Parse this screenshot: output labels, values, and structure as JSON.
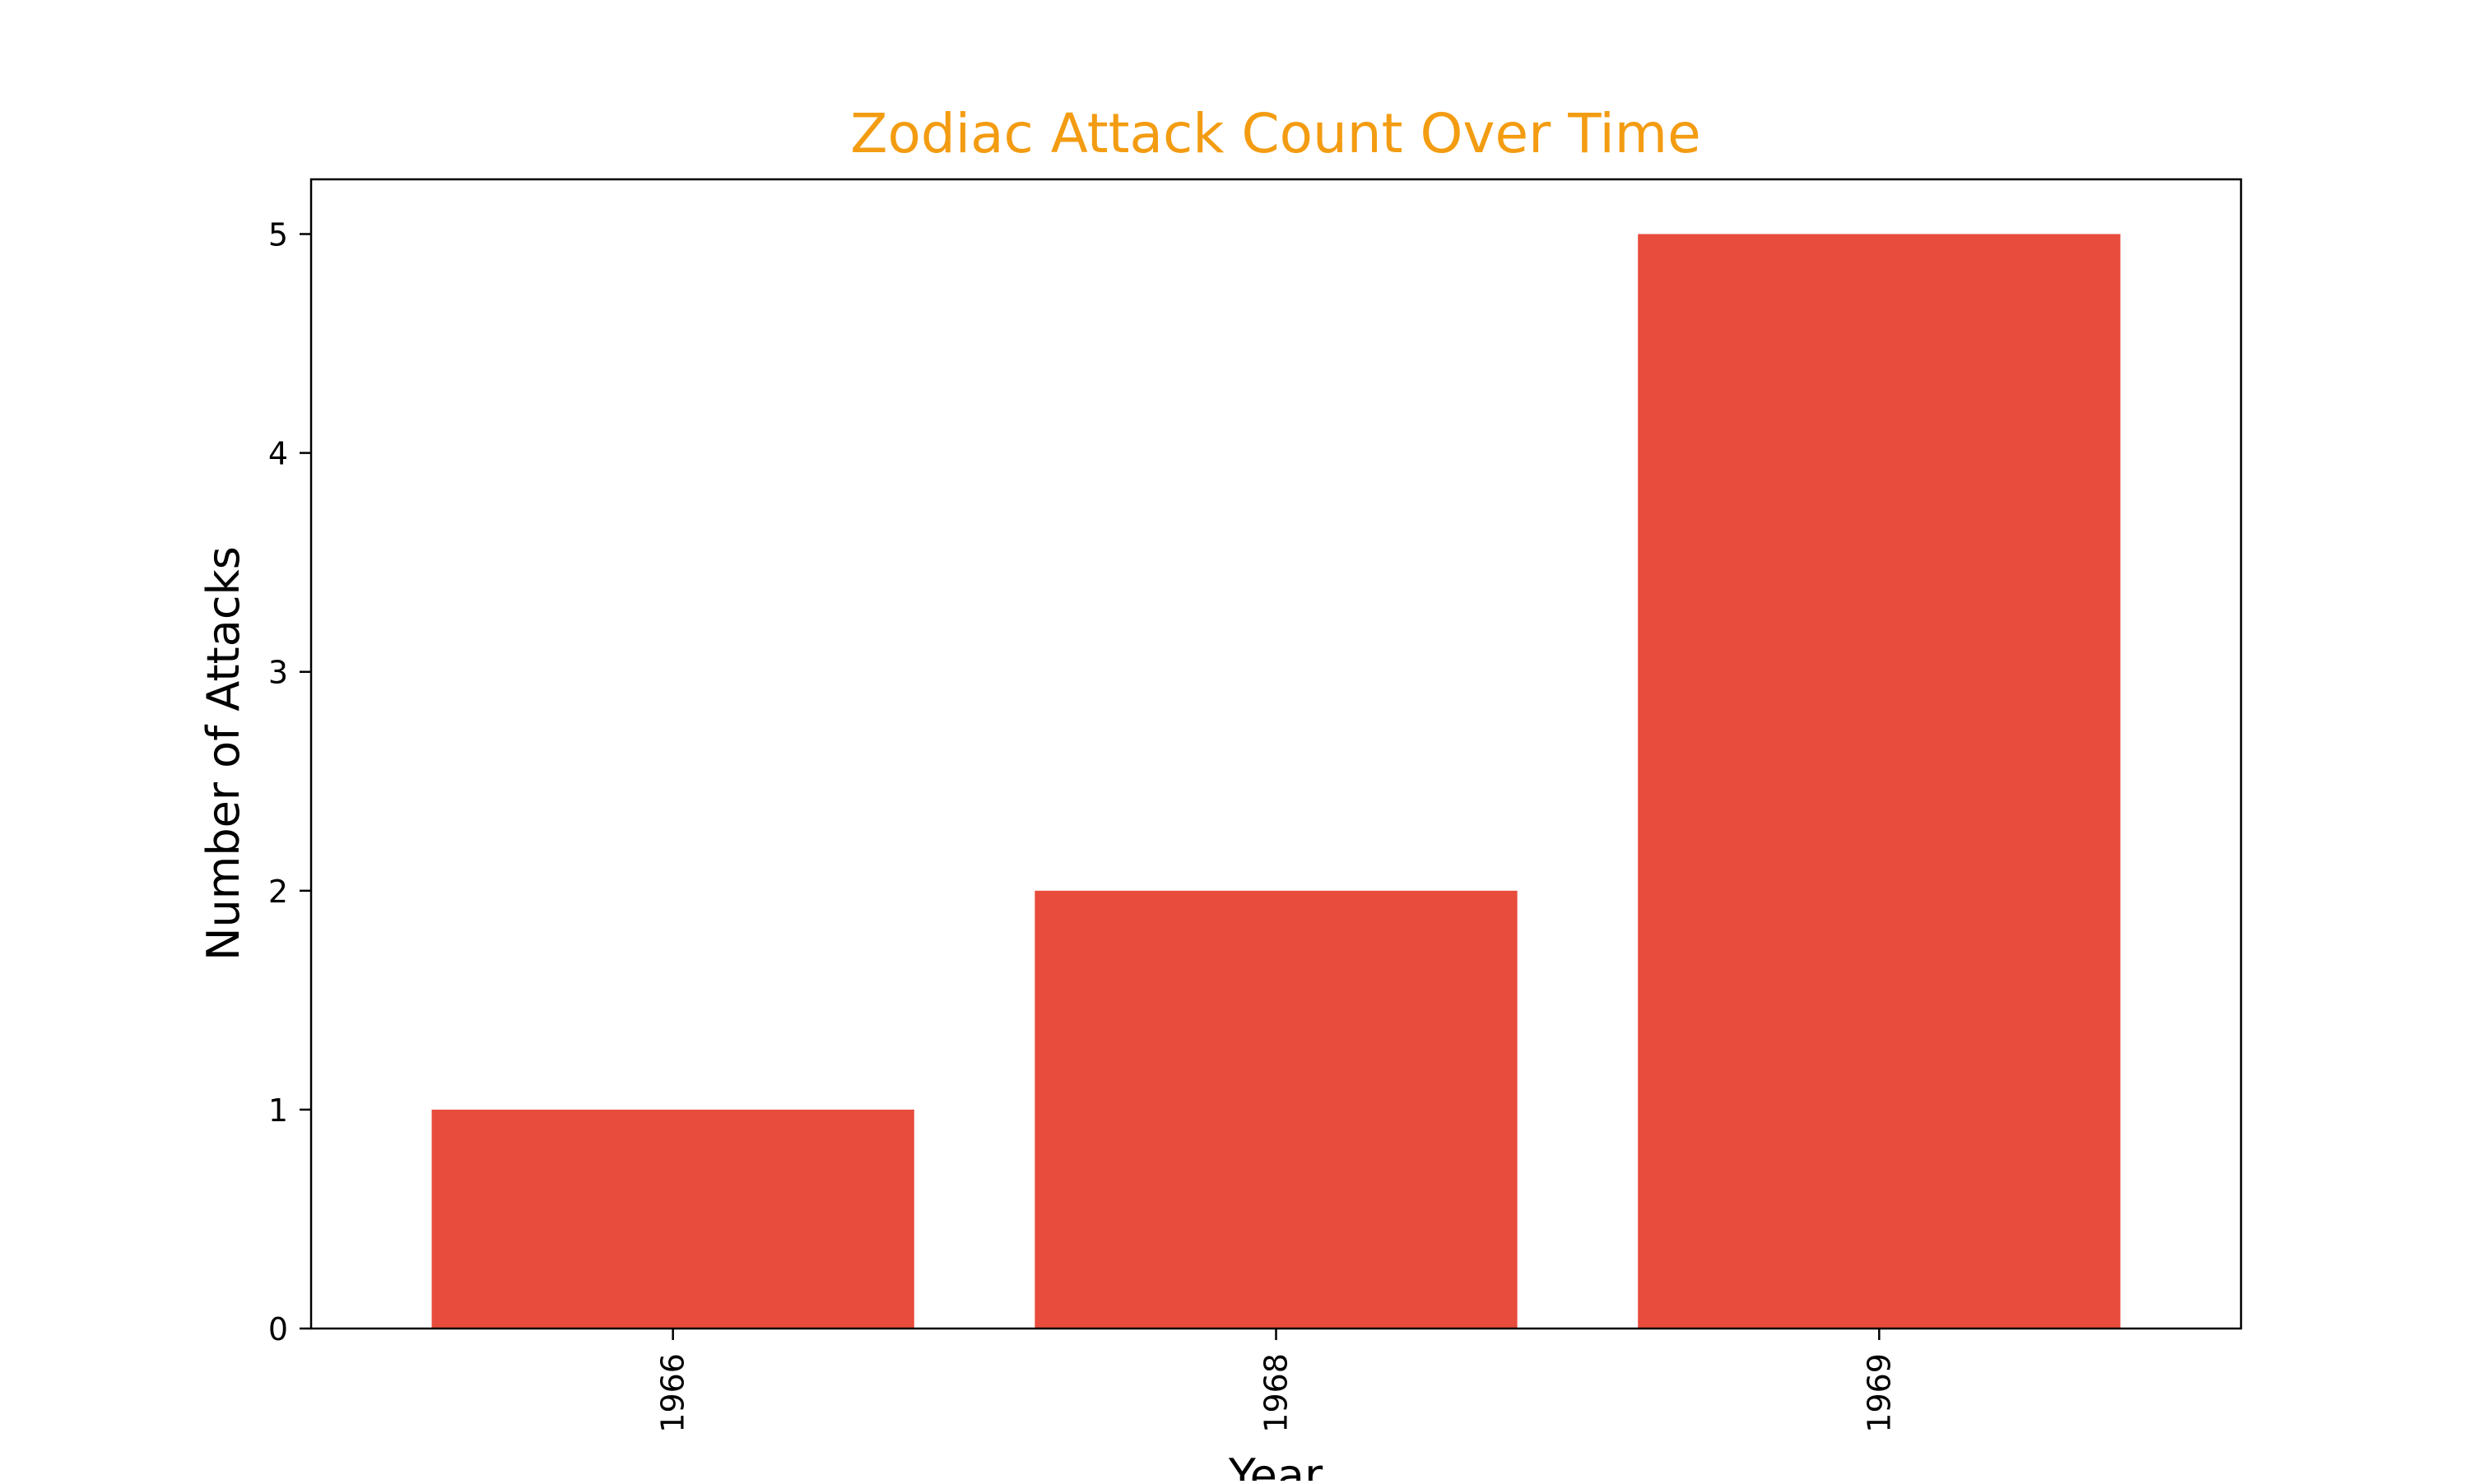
{
  "chart_data": {
    "type": "bar",
    "title": "Zodiac Attack Count Over Time",
    "xlabel": "Year",
    "ylabel": "Number of Attacks",
    "categories": [
      "1966",
      "1968",
      "1969"
    ],
    "values": [
      1,
      2,
      5
    ],
    "ylim": [
      0,
      5.25
    ],
    "yticks": [
      0,
      1,
      2,
      3,
      4,
      5
    ],
    "grid": false,
    "legend": "none",
    "colors": {
      "bar": "#e74c3c",
      "title": "#f39c12",
      "axis": "#000000",
      "text": "#000000"
    }
  }
}
